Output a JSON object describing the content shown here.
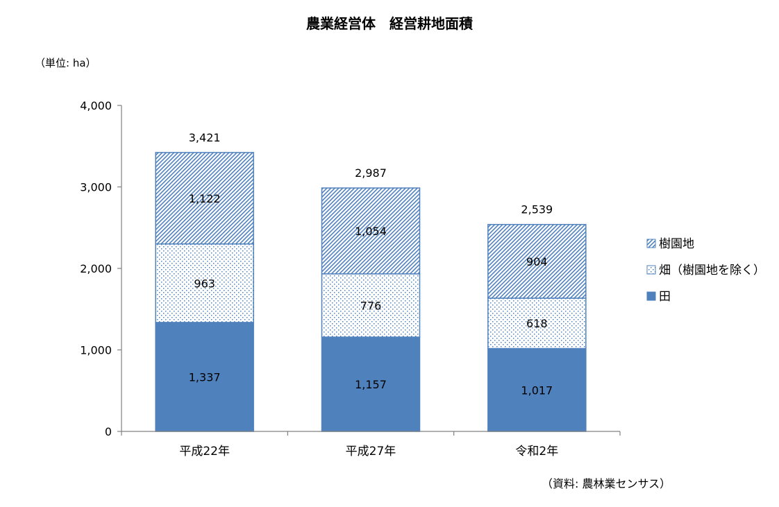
{
  "chart_data": {
    "type": "bar",
    "stacked": true,
    "title": "農業経営体　経営耕地面積",
    "unit_label": "（単位: ha）",
    "source": "（資料: 農林業センサス）",
    "categories": [
      "平成22年",
      "平成27年",
      "令和2年"
    ],
    "series": [
      {
        "name": "田",
        "values": [
          1337,
          1157,
          1017
        ],
        "color": "#4F81BD",
        "pattern": "solid"
      },
      {
        "name": "畑（樹園地を除く）",
        "values": [
          963,
          776,
          618
        ],
        "color": "#4F81BD",
        "pattern": "dots"
      },
      {
        "name": "樹園地",
        "values": [
          1122,
          1054,
          904
        ],
        "color": "#4F81BD",
        "pattern": "hatch"
      }
    ],
    "totals": [
      3421,
      2987,
      2539
    ],
    "ylim": [
      0,
      4000
    ],
    "yticks": [
      0,
      1000,
      2000,
      3000,
      4000
    ],
    "ytick_labels": [
      "0",
      "1,000",
      "2,000",
      "3,000",
      "4,000"
    ],
    "value_labels": {
      "田": [
        "1,337",
        "1,157",
        "1,017"
      ],
      "畑（樹園地を除く）": [
        "963",
        "776",
        "618"
      ],
      "樹園地": [
        "1,122",
        "1,054",
        "904"
      ],
      "total": [
        "3,421",
        "2,987",
        "2,539"
      ]
    },
    "legend_position": "right",
    "legend_order": [
      "樹園地",
      "畑（樹園地を除く）",
      "田"
    ],
    "grid": false
  }
}
